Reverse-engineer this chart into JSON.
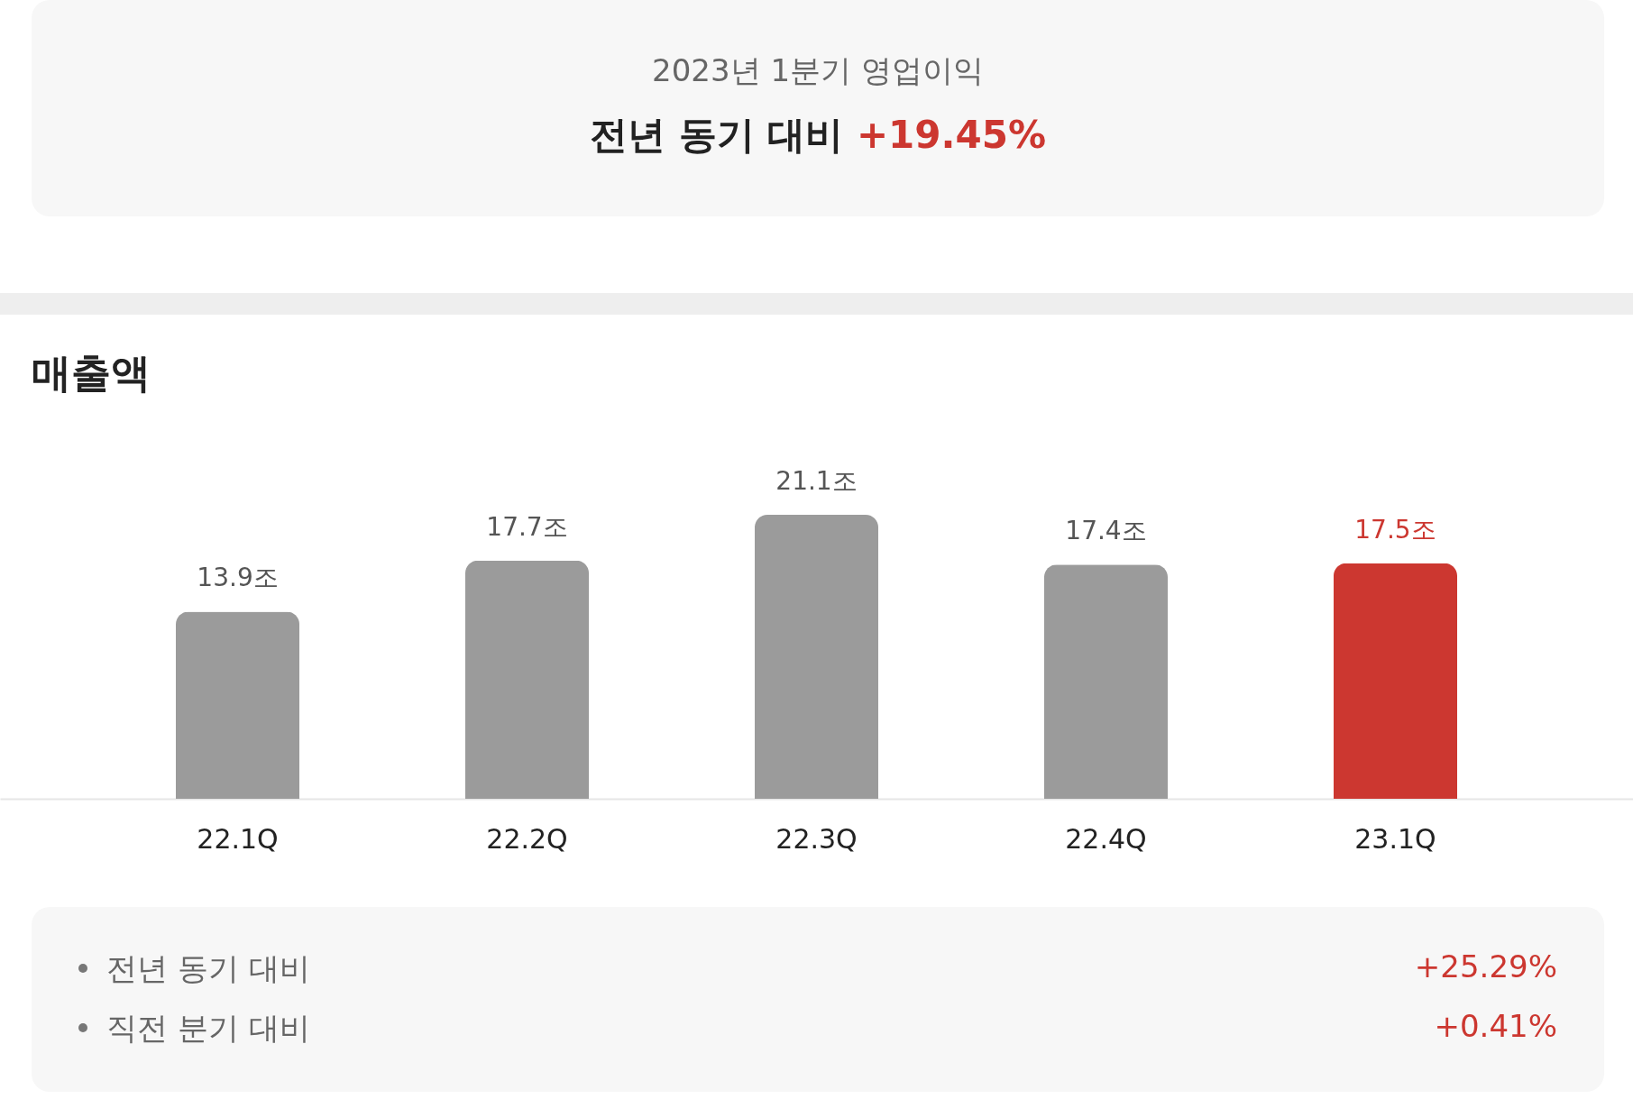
{
  "chart_data": [
    {
      "type": "other",
      "title": "2023년 1분기 영업이익",
      "subtitle": "전년 동기 대비",
      "annotations": [
        "+19.45%"
      ]
    },
    {
      "type": "bar",
      "title": "매출액",
      "categories": [
        "22.1Q",
        "22.2Q",
        "22.3Q",
        "22.4Q",
        "23.1Q"
      ],
      "values": [
        13.9,
        17.7,
        21.1,
        17.4,
        17.5
      ],
      "colors": [
        "#9b9b9b",
        "#9b9b9b",
        "#9b9b9b",
        "#9b9b9b",
        "#cc3730"
      ],
      "value_labels": [
        "13.9조",
        "17.7조",
        "21.1조",
        "17.4조",
        "17.5조"
      ],
      "annotations": [
        "전년 동기 대비",
        "+25.29%",
        "직전 분기 대비",
        "+0.41%"
      ]
    }
  ]
}
